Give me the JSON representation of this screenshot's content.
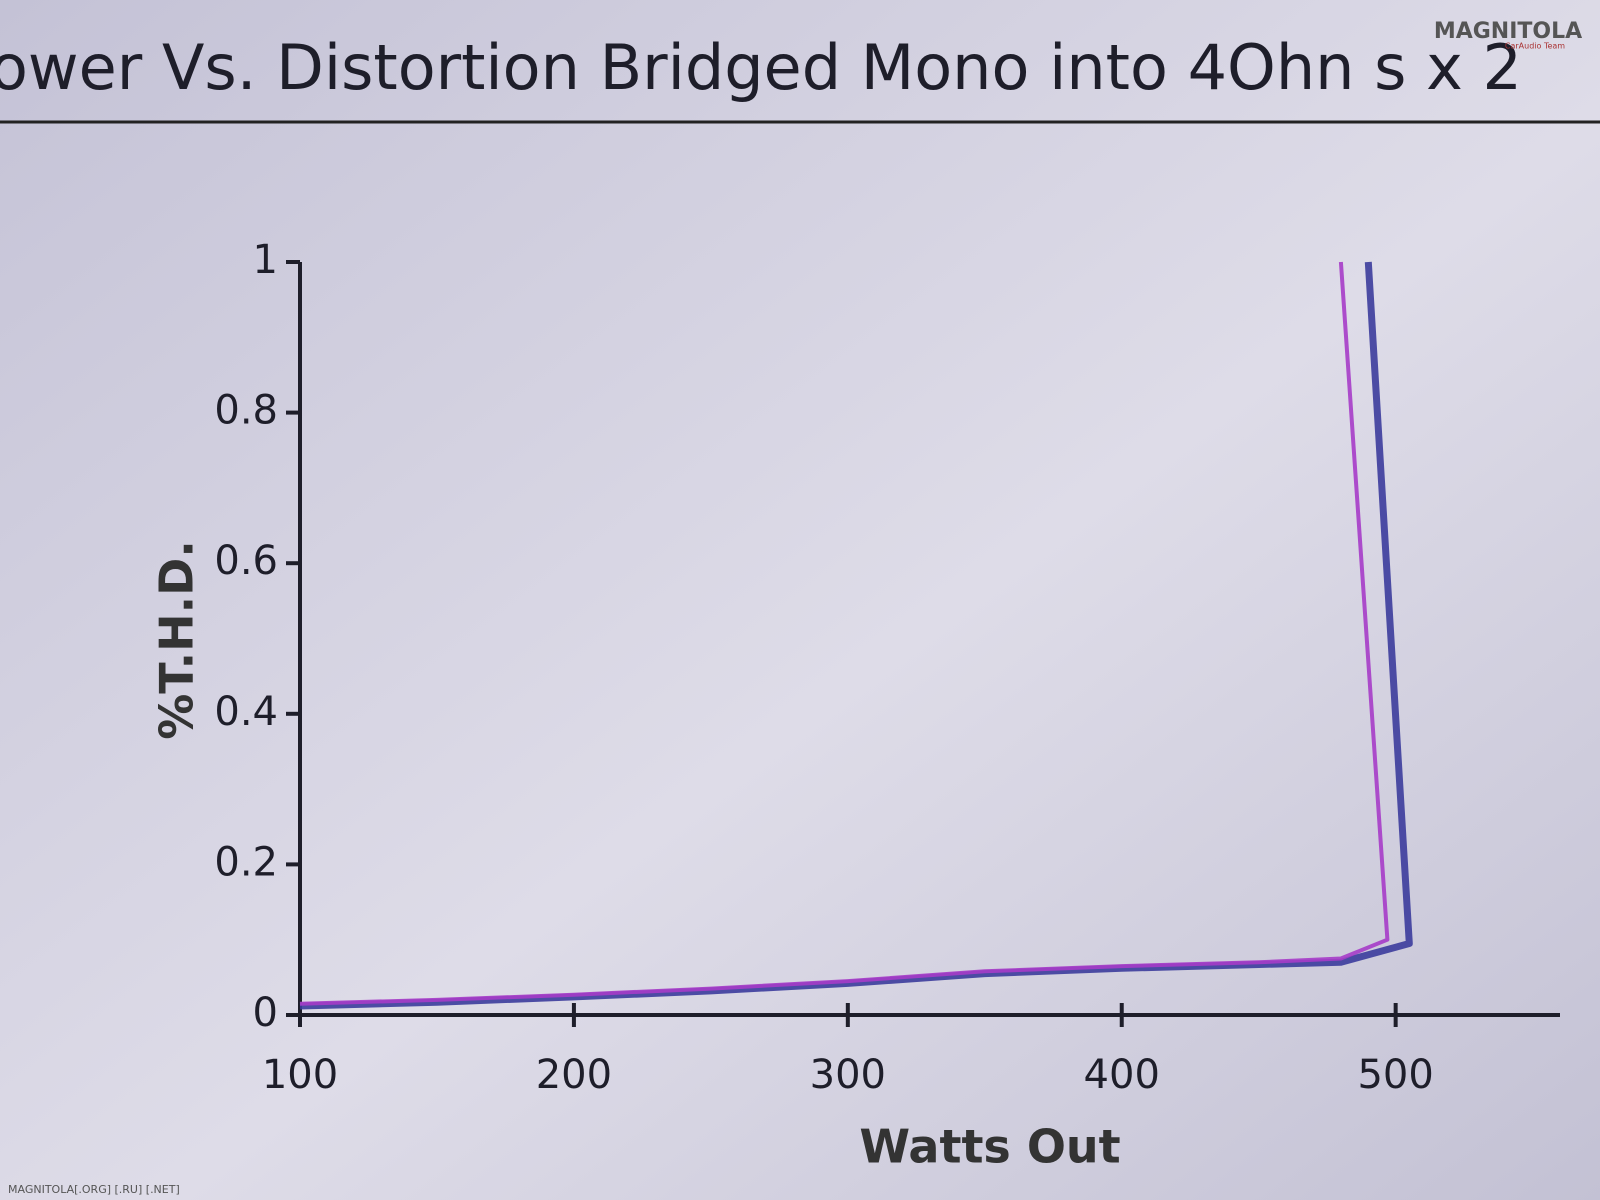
{
  "chart_data": {
    "type": "line",
    "title": "ower Vs. Distortion Bridged Mono into 4Ohn s x 2",
    "x_label": "Watts Out",
    "y_label": "%T.H.D.",
    "annotations": [
      "MAGNITOLA",
      "CarAudio Team",
      "MAGNITOLA[.ORG] [.RU] [.NET]"
    ],
    "xlim": [
      100,
      560
    ],
    "xticks": [
      100,
      200,
      300,
      400,
      500
    ],
    "ylim": [
      0,
      1
    ],
    "yticks": [
      0,
      0.2,
      0.4,
      0.6,
      0.8,
      1
    ],
    "grid": false,
    "series": [
      {
        "color": "#a63cc8",
        "x": [
          100,
          150,
          200,
          250,
          300,
          350,
          400,
          450,
          480,
          497,
          480
        ],
        "values": [
          0.015,
          0.02,
          0.027,
          0.035,
          0.045,
          0.058,
          0.065,
          0.07,
          0.075,
          0.1,
          1
        ]
      },
      {
        "color": "#3c3c9c",
        "x": [
          100,
          150,
          200,
          250,
          300,
          350,
          400,
          450,
          480,
          505,
          490
        ],
        "values": [
          0.012,
          0.017,
          0.024,
          0.032,
          0.042,
          0.055,
          0.062,
          0.067,
          0.07,
          0.095,
          1
        ]
      }
    ]
  }
}
